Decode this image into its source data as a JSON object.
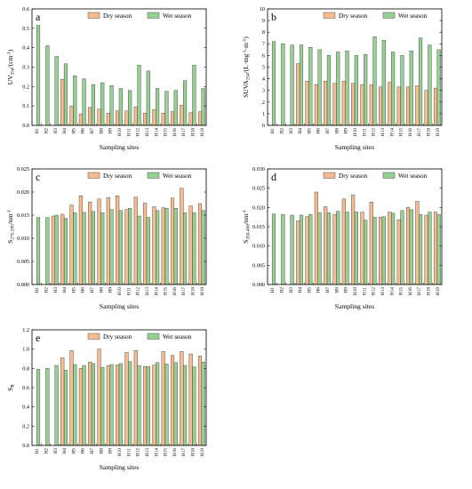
{
  "chart_data": [
    {
      "id": "a",
      "type": "bar",
      "panel_label": "a",
      "ylabel": "UV254/(cm⁻¹)",
      "ylabel_main": "UV",
      "ylabel_sub": "254",
      "ylabel_tail": "/(cm",
      "ylabel_sup": "-1",
      "ylabel_close": ")",
      "xlabel": "Sampling sites",
      "ylim": [
        0,
        0.6
      ],
      "yticks": [
        "0.0",
        "0.1",
        "0.2",
        "0.3",
        "0.4",
        "0.5",
        "0.6"
      ],
      "ytick_values": [
        0,
        0.1,
        0.2,
        0.3,
        0.4,
        0.5,
        0.6
      ],
      "categories": [
        "H1",
        "H2",
        "H3",
        "H4",
        "H5",
        "H6",
        "H7",
        "H8",
        "H9",
        "H10",
        "H11",
        "H12",
        "H13",
        "H14",
        "H15",
        "H16",
        "H17",
        "H18",
        "H19"
      ],
      "series": [
        {
          "name": "Dry season",
          "values": [
            null,
            null,
            null,
            0.237,
            0.1,
            0.059,
            0.092,
            0.084,
            0.063,
            0.075,
            0.074,
            0.096,
            0.063,
            0.081,
            0.063,
            0.071,
            0.104,
            0.065,
            0.07
          ]
        },
        {
          "name": "Wet season",
          "values": [
            0.515,
            0.41,
            0.355,
            0.317,
            0.255,
            0.24,
            0.21,
            0.22,
            0.205,
            0.19,
            0.18,
            0.31,
            0.28,
            0.19,
            0.175,
            0.18,
            0.23,
            0.31,
            0.19
          ]
        }
      ],
      "legend_position": "top-right"
    },
    {
      "id": "b",
      "type": "bar",
      "panel_label": "b",
      "ylabel": "SUVA254/(L·mg⁻¹·m⁻¹)",
      "ylabel_main": "SUVA",
      "ylabel_sub": "254",
      "ylabel_tail": "/(L·mg",
      "ylabel_sup": "-1",
      "ylabel_mid": "·m",
      "ylabel_sup2": "-1",
      "ylabel_close": ")",
      "xlabel": "Sampling sites",
      "ylim": [
        0,
        10
      ],
      "yticks": [
        "0",
        "1",
        "2",
        "3",
        "4",
        "5",
        "6",
        "7",
        "8",
        "9",
        "10"
      ],
      "ytick_values": [
        0,
        1,
        2,
        3,
        4,
        5,
        6,
        7,
        8,
        9,
        10
      ],
      "categories": [
        "H1",
        "H2",
        "H3",
        "H4",
        "H5",
        "H6",
        "H7",
        "H8",
        "H9",
        "H10",
        "H11",
        "H12",
        "H13",
        "H14",
        "H15",
        "H16",
        "H17",
        "H18",
        "H19"
      ],
      "series": [
        {
          "name": "Dry season",
          "values": [
            null,
            null,
            null,
            5.3,
            3.8,
            3.5,
            3.8,
            3.6,
            3.8,
            3.6,
            3.5,
            3.5,
            3.3,
            3.7,
            3.3,
            3.3,
            3.4,
            3.0,
            3.2
          ]
        },
        {
          "name": "Wet season",
          "values": [
            7.2,
            7.0,
            6.9,
            6.9,
            6.7,
            6.5,
            6.0,
            6.3,
            6.4,
            6.0,
            6.1,
            7.6,
            7.3,
            6.3,
            6.0,
            6.4,
            7.5,
            6.9,
            6.5
          ]
        }
      ],
      "legend_position": "top-right"
    },
    {
      "id": "c",
      "type": "bar",
      "panel_label": "c",
      "ylabel": "S275-295/nm⁻¹",
      "ylabel_main": "S",
      "ylabel_sub": "275-295",
      "ylabel_tail": "/nm",
      "ylabel_sup": "-1",
      "ylabel_close": "",
      "xlabel": "Sampling sites",
      "ylim": [
        0,
        0.025
      ],
      "yticks": [
        "0.000",
        "0.005",
        "0.010",
        "0.015",
        "0.020",
        "0.025"
      ],
      "ytick_values": [
        0,
        0.005,
        0.01,
        0.015,
        0.02,
        0.025
      ],
      "categories": [
        "H1",
        "H2",
        "H3",
        "H4",
        "H5",
        "H6",
        "H7",
        "H8",
        "H9",
        "H10",
        "H11",
        "H12",
        "H13",
        "H14",
        "H15",
        "H16",
        "H17",
        "H18",
        "H19"
      ],
      "series": [
        {
          "name": "Dry season",
          "values": [
            null,
            null,
            0.0148,
            0.0152,
            0.0172,
            0.0192,
            0.0178,
            0.0185,
            0.0188,
            0.0192,
            0.0162,
            0.0189,
            0.0176,
            0.0168,
            0.0166,
            0.0187,
            0.0208,
            0.017,
            0.0175
          ]
        },
        {
          "name": "Wet season",
          "values": [
            0.0145,
            0.0145,
            0.015,
            0.0143,
            0.0155,
            0.0156,
            0.0158,
            0.0155,
            0.0162,
            0.016,
            0.0165,
            0.0148,
            0.0145,
            0.016,
            0.0165,
            0.0165,
            0.0155,
            0.0155,
            0.016
          ]
        }
      ],
      "legend_position": "top-right"
    },
    {
      "id": "d",
      "type": "bar",
      "panel_label": "d",
      "ylabel": "S350-400/nm⁻¹",
      "ylabel_main": "S",
      "ylabel_sub": "350-400",
      "ylabel_tail": "/nm",
      "ylabel_sup": "-1",
      "ylabel_close": "",
      "xlabel": "Sampling sites",
      "ylim": [
        0,
        0.03
      ],
      "yticks": [
        "0.000",
        "0.005",
        "0.010",
        "0.015",
        "0.020",
        "0.025",
        "0.030"
      ],
      "ytick_values": [
        0,
        0.005,
        0.01,
        0.015,
        0.02,
        0.025,
        0.03
      ],
      "categories": [
        "H1",
        "H2",
        "H3",
        "H4",
        "H5",
        "H6",
        "H7",
        "H8",
        "H9",
        "H10",
        "H11",
        "H12",
        "H13",
        "H14",
        "H15",
        "H16",
        "H17",
        "H18",
        "H19"
      ],
      "series": [
        {
          "name": "Dry season",
          "values": [
            null,
            null,
            null,
            0.0165,
            0.0176,
            0.024,
            0.0202,
            0.0182,
            0.0222,
            0.0232,
            0.0188,
            0.0214,
            0.0175,
            0.0188,
            0.0168,
            0.02,
            0.0216,
            0.018,
            0.0188
          ]
        },
        {
          "name": "Wet season",
          "values": [
            0.0183,
            0.0182,
            0.018,
            0.018,
            0.0182,
            0.0186,
            0.0186,
            0.019,
            0.0188,
            0.0188,
            0.0167,
            0.0175,
            0.0176,
            0.0185,
            0.0192,
            0.0194,
            0.0182,
            0.0188,
            0.0182
          ]
        }
      ],
      "legend_position": "top-right"
    },
    {
      "id": "e",
      "type": "bar",
      "panel_label": "e",
      "ylabel": "SR",
      "ylabel_main": "S",
      "ylabel_sub": "R",
      "ylabel_tail": "",
      "ylabel_sup": "",
      "ylabel_close": "",
      "xlabel": "Sampling sites",
      "ylim": [
        0,
        1.2
      ],
      "yticks": [
        "0.0",
        "0.2",
        "0.4",
        "0.6",
        "0.8",
        "1.0",
        "1.2"
      ],
      "ytick_values": [
        0,
        0.2,
        0.4,
        0.6,
        0.8,
        1.0,
        1.2
      ],
      "categories": [
        "H1",
        "H2",
        "H3",
        "H4",
        "H5",
        "H6",
        "H7",
        "H8",
        "H9",
        "H10",
        "H11",
        "H12",
        "H13",
        "H14",
        "H15",
        "H16",
        "H17",
        "H18",
        "H19"
      ],
      "series": [
        {
          "name": "Dry season",
          "values": [
            null,
            null,
            null,
            0.91,
            0.985,
            0.8,
            0.865,
            1.0,
            0.83,
            0.835,
            0.965,
            0.985,
            0.82,
            0.835,
            0.975,
            0.935,
            0.975,
            0.95,
            0.93
          ]
        },
        {
          "name": "Wet season",
          "values": [
            0.79,
            0.8,
            0.83,
            0.78,
            0.84,
            0.83,
            0.85,
            0.81,
            0.84,
            0.85,
            0.87,
            0.83,
            0.82,
            0.86,
            0.845,
            0.86,
            0.83,
            0.815,
            0.865
          ]
        }
      ],
      "legend_position": "top-right"
    }
  ],
  "colors": {
    "dry": "#f6bb8f",
    "wet": "#96d193"
  }
}
